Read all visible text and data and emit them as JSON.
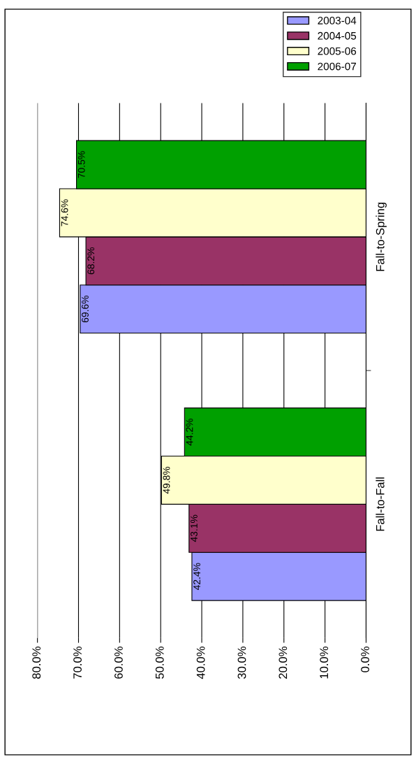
{
  "chart_data": {
    "type": "bar",
    "orientation": "horizontal",
    "categories": [
      "Fall-to-Spring",
      "Fall-to-Fall"
    ],
    "series": [
      {
        "name": "2003-04",
        "color": "#9999ff",
        "values": [
          69.6,
          42.4
        ],
        "value_labels": [
          "69.6%",
          "42.4%"
        ]
      },
      {
        "name": "2004-05",
        "color": "#993366",
        "values": [
          68.2,
          43.1
        ],
        "value_labels": [
          "68.2%",
          "43.1%"
        ]
      },
      {
        "name": "2005-06",
        "color": "#ffffcc",
        "values": [
          74.6,
          49.8
        ],
        "value_labels": [
          "74.6%",
          "49.8%"
        ]
      },
      {
        "name": "2006-07",
        "color": "#00a000",
        "values": [
          70.5,
          44.2
        ],
        "value_labels": [
          "70.5%",
          "44.2%"
        ]
      }
    ],
    "xlim": [
      80,
      0
    ],
    "xticks": [
      {
        "value": 80,
        "label": "80.0%"
      },
      {
        "value": 70,
        "label": "70.0%"
      },
      {
        "value": 60,
        "label": "60.0%"
      },
      {
        "value": 50,
        "label": "50.0%"
      },
      {
        "value": 40,
        "label": "40.0%"
      },
      {
        "value": 30,
        "label": "30.0%"
      },
      {
        "value": 20,
        "label": "20.0%"
      },
      {
        "value": 10,
        "label": "10.0%"
      },
      {
        "value": 0,
        "label": "0.0%"
      }
    ],
    "grid": "x",
    "legend": "top right"
  }
}
